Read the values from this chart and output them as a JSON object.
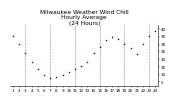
{
  "title": "Milwaukee Weather Wind Chill\nHourly Average\n(24 Hours)",
  "hours": [
    1,
    2,
    3,
    4,
    5,
    6,
    7,
    8,
    9,
    10,
    11,
    12,
    13,
    14,
    15,
    16,
    17,
    18,
    19,
    20,
    21,
    22,
    23,
    24
  ],
  "wind_chill": [
    35,
    30,
    24,
    18,
    13,
    9,
    7,
    8,
    9,
    11,
    13,
    15,
    18,
    24,
    28,
    32,
    34,
    33,
    30,
    27,
    23,
    30,
    35,
    38
  ],
  "dot_color": "#0000cc",
  "bg_color": "#ffffff",
  "grid_color": "#888888",
  "title_color": "#000000",
  "tick_label_color": "#000000",
  "ylim": [
    2,
    42
  ],
  "ytick_positions": [
    5,
    10,
    15,
    20,
    25,
    30,
    35,
    40
  ],
  "ytick_labels": [
    "5",
    "10",
    "15",
    "20",
    "25",
    "30",
    "35",
    "40"
  ],
  "vgrid_hours": [
    3,
    7,
    11,
    15,
    19,
    23
  ],
  "title_fontsize": 4.2,
  "tick_fontsize": 3.0,
  "dot_size": 1.2
}
